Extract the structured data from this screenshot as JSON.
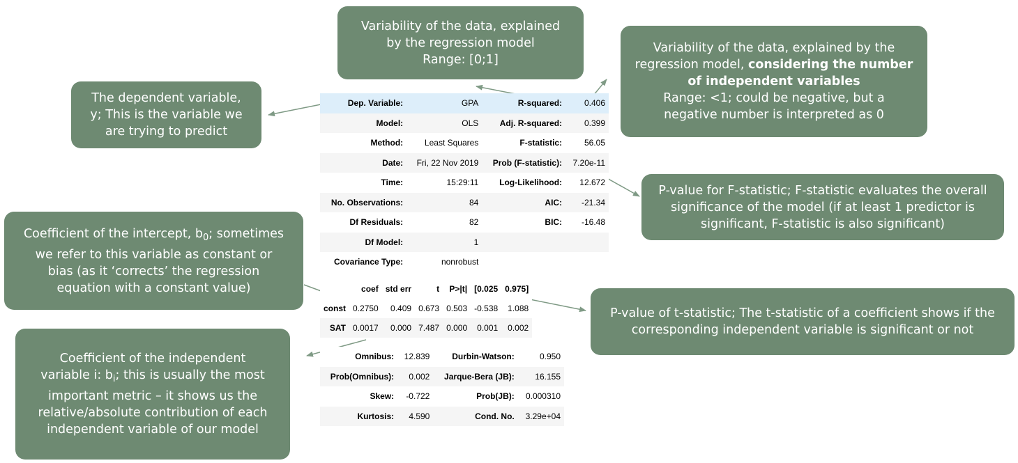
{
  "callouts": {
    "r_squared": {
      "line1": "Variability of the data, explained",
      "line2": "by the regression model",
      "line3": "Range: [0;1]"
    },
    "adj_r_squared": {
      "line1": "Variability of the data, explained by the",
      "line2_a": "regression model, ",
      "line2_b": "considering the number",
      "line3": "of independent variables",
      "line4": "Range: <1; could be negative, but a",
      "line5": "negative number is interpreted as 0"
    },
    "dep_variable": {
      "line1": "The dependent variable,",
      "line2": "y; This is the variable we",
      "line3": "are trying to predict"
    },
    "f_pvalue": {
      "line1": "P-value for F-statistic; F-statistic evaluates the overall",
      "line2": "significance of the model (if at least 1 predictor is",
      "line3": "significant, F-statistic is also significant)"
    },
    "intercept": {
      "line1_a": "Coefficient of the intercept, b",
      "line1_sub": "0",
      "line1_b": "; sometimes",
      "line2": "we refer to this variable as constant or",
      "line3": "bias (as it ‘corrects’ the regression",
      "line4": "equation with a constant value)"
    },
    "t_pvalue": {
      "line1": "P-value of t-statistic; The t-statistic of a coefficient shows if the",
      "line2": "corresponding independent variable is significant or not"
    },
    "coef_independent": {
      "line1": "Coefficient of the independent",
      "line2_a": "variable i: b",
      "line2_sub": "i",
      "line2_b": "; this is usually the most",
      "line3": "important metric – it shows us the",
      "line4": "relative/absolute contribution of each",
      "line5": "independent variable of our model"
    }
  },
  "summary": [
    {
      "k1": "Dep. Variable:",
      "v1": "GPA",
      "k2": "R-squared:",
      "v2": "0.406"
    },
    {
      "k1": "Model:",
      "v1": "OLS",
      "k2": "Adj. R-squared:",
      "v2": "0.399"
    },
    {
      "k1": "Method:",
      "v1": "Least Squares",
      "k2": "F-statistic:",
      "v2": "56.05"
    },
    {
      "k1": "Date:",
      "v1": "Fri, 22 Nov 2019",
      "k2": "Prob (F-statistic):",
      "v2": "7.20e-11"
    },
    {
      "k1": "Time:",
      "v1": "15:29:11",
      "k2": "Log-Likelihood:",
      "v2": "12.672"
    },
    {
      "k1": "No. Observations:",
      "v1": "84",
      "k2": "AIC:",
      "v2": "-21.34"
    },
    {
      "k1": "Df Residuals:",
      "v1": "82",
      "k2": "BIC:",
      "v2": "-16.48"
    },
    {
      "k1": "Df Model:",
      "v1": "1",
      "k2": "",
      "v2": ""
    },
    {
      "k1": "Covariance Type:",
      "v1": "nonrobust",
      "k2": "",
      "v2": ""
    }
  ],
  "coef_table": {
    "headers": [
      "",
      "coef",
      "std err",
      "t",
      "P>|t|",
      "[0.025",
      "0.975]"
    ],
    "rows": [
      [
        "const",
        "0.2750",
        "0.409",
        "0.673",
        "0.503",
        "-0.538",
        "1.088"
      ],
      [
        "SAT",
        "0.0017",
        "0.000",
        "7.487",
        "0.000",
        "0.001",
        "0.002"
      ]
    ]
  },
  "diagnostics": [
    {
      "k1": "Omnibus:",
      "v1": "12.839",
      "k2": "Durbin-Watson:",
      "v2": "0.950"
    },
    {
      "k1": "Prob(Omnibus):",
      "v1": "0.002",
      "k2": "Jarque-Bera (JB):",
      "v2": "16.155"
    },
    {
      "k1": "Skew:",
      "v1": "-0.722",
      "k2": "Prob(JB):",
      "v2": "0.000310"
    },
    {
      "k1": "Kurtosis:",
      "v1": "4.590",
      "k2": "Cond. No.",
      "v2": "3.29e+04"
    }
  ],
  "colors": {
    "callout_bg": "#6e8a72",
    "arrow": "#7f9a85",
    "highlight_row": "#ddeefa"
  }
}
